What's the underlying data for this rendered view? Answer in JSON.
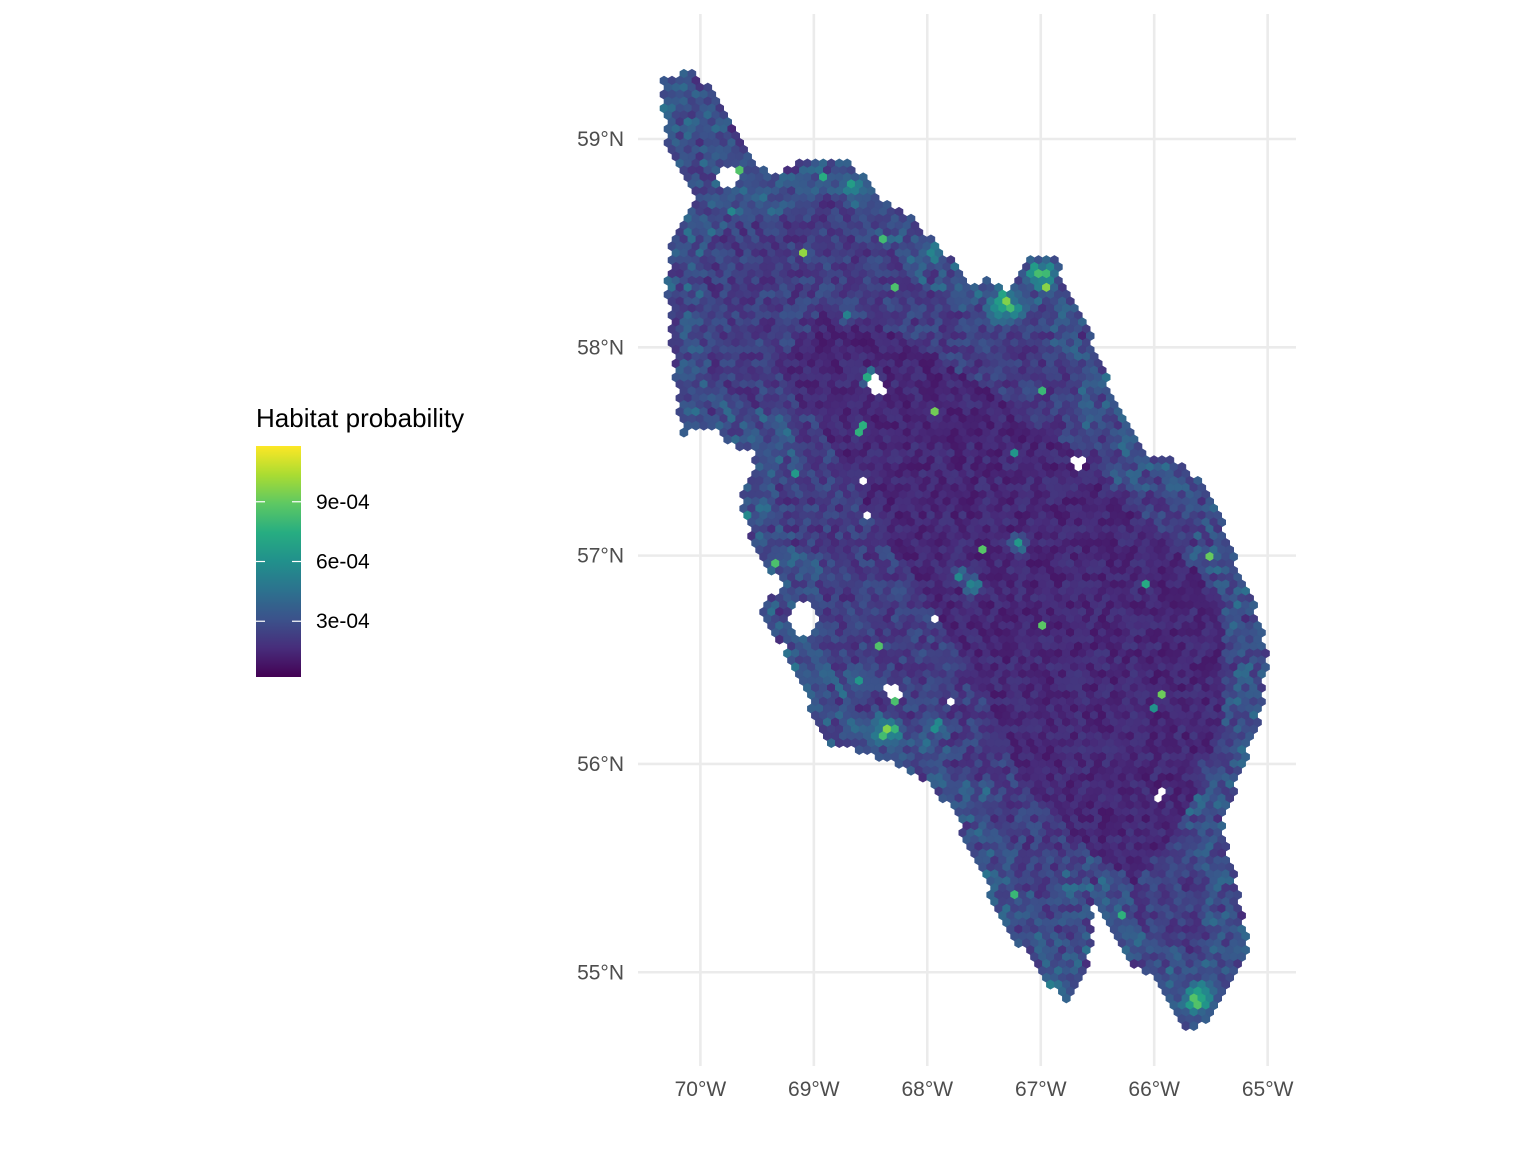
{
  "legend": {
    "title": "Habitat probability",
    "ticks": [
      {
        "label": "9e-04",
        "value": 0.0009
      },
      {
        "label": "6e-04",
        "value": 0.0006
      },
      {
        "label": "3e-04",
        "value": 0.0003
      }
    ],
    "min_value": 2e-05,
    "max_value": 0.00118,
    "palette": [
      "#440154",
      "#472D7B",
      "#3B528B",
      "#2C728E",
      "#21908C",
      "#27AD81",
      "#5DC863",
      "#AADC32",
      "#FDE725"
    ]
  },
  "chart_data": {
    "type": "heatmap",
    "map_type": "hexbin choropleth",
    "title": "",
    "xlabel": "",
    "ylabel": "",
    "x_ticks": [
      {
        "label": "70°W",
        "value": -70
      },
      {
        "label": "69°W",
        "value": -69
      },
      {
        "label": "68°W",
        "value": -68
      },
      {
        "label": "67°W",
        "value": -67
      },
      {
        "label": "66°W",
        "value": -66
      },
      {
        "label": "65°W",
        "value": -65
      }
    ],
    "y_ticks": [
      {
        "label": "59°N",
        "value": 59
      },
      {
        "label": "58°N",
        "value": 58
      },
      {
        "label": "57°N",
        "value": 57
      },
      {
        "label": "56°N",
        "value": 56
      },
      {
        "label": "55°N",
        "value": 55
      }
    ],
    "xlim": [
      -70.55,
      -64.75
    ],
    "ylim": [
      54.55,
      59.6
    ],
    "grid": true,
    "legend_position": "left",
    "region_outline_lonlat": [
      [
        -70.35,
        59.28
      ],
      [
        -70.1,
        59.34
      ],
      [
        -69.85,
        59.2
      ],
      [
        -69.6,
        58.95
      ],
      [
        -69.38,
        58.82
      ],
      [
        -69.1,
        58.9
      ],
      [
        -68.7,
        58.9
      ],
      [
        -68.4,
        58.72
      ],
      [
        -68.05,
        58.58
      ],
      [
        -67.85,
        58.45
      ],
      [
        -67.6,
        58.35
      ],
      [
        -67.3,
        58.28
      ],
      [
        -67.1,
        58.42
      ],
      [
        -66.9,
        58.45
      ],
      [
        -66.75,
        58.28
      ],
      [
        -66.55,
        58.05
      ],
      [
        -66.35,
        57.75
      ],
      [
        -66.1,
        57.5
      ],
      [
        -65.75,
        57.45
      ],
      [
        -65.45,
        57.25
      ],
      [
        -65.3,
        57.0
      ],
      [
        -65.1,
        56.75
      ],
      [
        -65.0,
        56.5
      ],
      [
        -65.05,
        56.25
      ],
      [
        -65.25,
        55.95
      ],
      [
        -65.4,
        55.7
      ],
      [
        -65.3,
        55.5
      ],
      [
        -65.2,
        55.25
      ],
      [
        -65.15,
        55.15
      ],
      [
        -65.35,
        54.95
      ],
      [
        -65.45,
        54.8
      ],
      [
        -65.7,
        54.7
      ],
      [
        -65.95,
        54.95
      ],
      [
        -66.25,
        55.05
      ],
      [
        -66.55,
        55.35
      ],
      [
        -66.55,
        55.1
      ],
      [
        -66.75,
        54.85
      ],
      [
        -66.95,
        54.95
      ],
      [
        -67.15,
        55.1
      ],
      [
        -67.35,
        55.25
      ],
      [
        -67.55,
        55.5
      ],
      [
        -67.8,
        55.8
      ],
      [
        -68.1,
        55.95
      ],
      [
        -68.5,
        56.05
      ],
      [
        -68.9,
        56.1
      ],
      [
        -69.05,
        56.3
      ],
      [
        -69.25,
        56.55
      ],
      [
        -69.5,
        56.75
      ],
      [
        -69.25,
        56.85
      ],
      [
        -69.5,
        57.0
      ],
      [
        -69.65,
        57.25
      ],
      [
        -69.5,
        57.5
      ],
      [
        -69.9,
        57.55
      ],
      [
        -70.15,
        57.5
      ],
      [
        -70.2,
        57.75
      ],
      [
        -70.25,
        58.0
      ],
      [
        -70.3,
        58.3
      ],
      [
        -70.25,
        58.55
      ],
      [
        -70.05,
        58.7
      ],
      [
        -70.3,
        58.95
      ],
      [
        -70.35,
        59.28
      ]
    ],
    "low_value_zone_lonlat": [
      [
        -68.9,
        58.2
      ],
      [
        -68.2,
        58.05
      ],
      [
        -67.2,
        57.7
      ],
      [
        -66.3,
        57.3
      ],
      [
        -65.4,
        56.8
      ],
      [
        -65.4,
        56.0
      ],
      [
        -66.2,
        55.4
      ],
      [
        -67.0,
        55.8
      ],
      [
        -67.8,
        56.6
      ],
      [
        -68.6,
        57.3
      ],
      [
        -69.3,
        57.9
      ]
    ],
    "high_value_hotspots": [
      {
        "lon": -68.35,
        "lat": 56.15,
        "value": 0.00115,
        "radius_deg": 0.16
      },
      {
        "lon": -69.1,
        "lat": 56.65,
        "value": 0.00085,
        "radius_deg": 0.16
      },
      {
        "lon": -67.9,
        "lat": 56.17,
        "value": 0.0009,
        "radius_deg": 0.12
      },
      {
        "lon": -67.3,
        "lat": 58.2,
        "value": 0.0011,
        "radius_deg": 0.2
      },
      {
        "lon": -67.0,
        "lat": 58.35,
        "value": 0.0011,
        "radius_deg": 0.16
      },
      {
        "lon": -68.5,
        "lat": 57.85,
        "value": 0.00095,
        "radius_deg": 0.1
      },
      {
        "lon": -68.65,
        "lat": 58.78,
        "value": 0.00075,
        "radius_deg": 0.22
      },
      {
        "lon": -67.95,
        "lat": 58.45,
        "value": 0.0009,
        "radius_deg": 0.12
      },
      {
        "lon": -66.95,
        "lat": 54.9,
        "value": 0.00105,
        "radius_deg": 0.16
      },
      {
        "lon": -65.6,
        "lat": 54.87,
        "value": 0.0011,
        "radius_deg": 0.18
      },
      {
        "lon": -67.2,
        "lat": 57.05,
        "value": 0.0008,
        "radius_deg": 0.1
      },
      {
        "lon": -67.6,
        "lat": 56.85,
        "value": 0.00085,
        "radius_deg": 0.1
      },
      {
        "lon": -68.7,
        "lat": 58.15,
        "value": 0.0008,
        "radius_deg": 0.08
      },
      {
        "lon": -69.6,
        "lat": 57.2,
        "value": 0.00075,
        "radius_deg": 0.1
      },
      {
        "lon": -69.9,
        "lat": 57.4,
        "value": 0.0008,
        "radius_deg": 0.06
      },
      {
        "lon": -69.7,
        "lat": 58.65,
        "value": 0.0009,
        "radius_deg": 0.06
      },
      {
        "lon": -67.7,
        "lat": 56.9,
        "value": 0.0007,
        "radius_deg": 0.1
      },
      {
        "lon": -68.6,
        "lat": 56.4,
        "value": 0.00065,
        "radius_deg": 0.2
      },
      {
        "lon": -68.0,
        "lat": 55.6,
        "value": 0.0005,
        "radius_deg": 0.3
      }
    ],
    "no_data_holes": [
      {
        "lon": -68.45,
        "lat": 57.82,
        "radius_deg": 0.06
      },
      {
        "lon": -69.95,
        "lat": 57.5,
        "radius_deg": 0.15
      },
      {
        "lon": -69.1,
        "lat": 56.7,
        "radius_deg": 0.1
      },
      {
        "lon": -67.6,
        "lat": 58.35,
        "radius_deg": 0.06
      },
      {
        "lon": -66.65,
        "lat": 57.45,
        "radius_deg": 0.04
      },
      {
        "lon": -68.55,
        "lat": 57.35,
        "radius_deg": 0.03
      },
      {
        "lon": -67.95,
        "lat": 56.7,
        "radius_deg": 0.03
      },
      {
        "lon": -68.3,
        "lat": 56.35,
        "radius_deg": 0.05
      },
      {
        "lon": -69.75,
        "lat": 58.82,
        "radius_deg": 0.06
      },
      {
        "lon": -65.95,
        "lat": 55.85,
        "radius_deg": 0.03
      },
      {
        "lon": -68.55,
        "lat": 57.2,
        "radius_deg": 0.03
      },
      {
        "lon": -67.8,
        "lat": 56.3,
        "radius_deg": 0.03
      }
    ]
  }
}
